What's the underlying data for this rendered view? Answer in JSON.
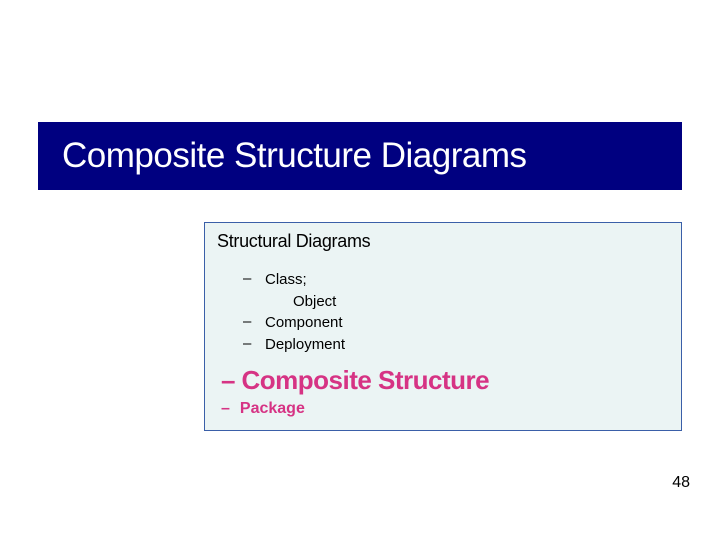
{
  "title_bar": {
    "text": "Composite Structure Diagrams",
    "background_color": "#000080",
    "text_color": "#ffffff",
    "font_size": 35
  },
  "info_box": {
    "title": "Structural Diagrams",
    "background_color": "#ebf4f4",
    "border_color": "#3a5fa8",
    "items_small": {
      "item1_line1": "Class;",
      "item1_line2": "Object",
      "item2": "Component",
      "item3": "Deployment"
    },
    "highlight": {
      "label": "Composite Structure",
      "color": "#d63384",
      "font_size": 26
    },
    "last": {
      "label": "Package",
      "color": "#d63384",
      "font_size": 16
    }
  },
  "page_number": "48"
}
